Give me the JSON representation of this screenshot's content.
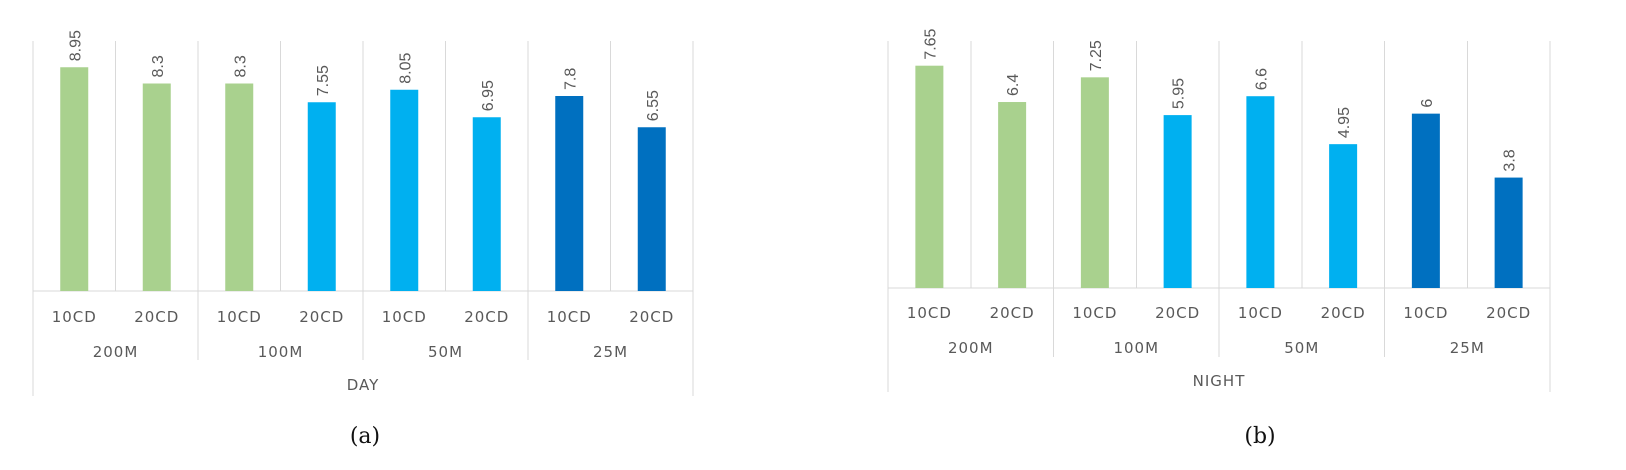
{
  "colors": {
    "green": "#A9D18E",
    "light_blue": "#00B0F0",
    "dark_blue": "#0070C0",
    "grid": "#D9D9D9",
    "text": "#595959"
  },
  "captions": [
    "(a)",
    "(b)"
  ],
  "chart_data": [
    {
      "type": "bar",
      "categories": [
        "10CD",
        "20CD",
        "10CD",
        "20CD",
        "10CD",
        "20CD",
        "10CD",
        "20CD"
      ],
      "groups": [
        "200M",
        "100M",
        "50M",
        "25M"
      ],
      "outer_label": "DAY",
      "values": [
        8.95,
        8.3,
        8.3,
        7.55,
        8.05,
        6.95,
        7.8,
        6.55
      ],
      "value_labels": [
        "8.95",
        "8.3",
        "8.3",
        "7.55",
        "8.05",
        "6.95",
        "7.8",
        "6.55"
      ],
      "bar_colors": [
        "green",
        "green",
        "green",
        "light_blue",
        "light_blue",
        "light_blue",
        "dark_blue",
        "dark_blue"
      ],
      "ylim": [
        0,
        10
      ],
      "grid": true
    },
    {
      "type": "bar",
      "categories": [
        "10CD",
        "20CD",
        "10CD",
        "20CD",
        "10CD",
        "20CD",
        "10CD",
        "20CD"
      ],
      "groups": [
        "200M",
        "100M",
        "50M",
        "25M"
      ],
      "outer_label": "NIGHT",
      "values": [
        7.65,
        6.4,
        7.25,
        5.95,
        6.6,
        4.95,
        6,
        3.8
      ],
      "value_labels": [
        "7.65",
        "6.4",
        "7.25",
        "5.95",
        "6.6",
        "4.95",
        "6",
        "3.8"
      ],
      "bar_colors": [
        "green",
        "green",
        "green",
        "light_blue",
        "light_blue",
        "light_blue",
        "dark_blue",
        "dark_blue"
      ],
      "ylim": [
        0,
        8.5
      ],
      "grid": true
    }
  ]
}
